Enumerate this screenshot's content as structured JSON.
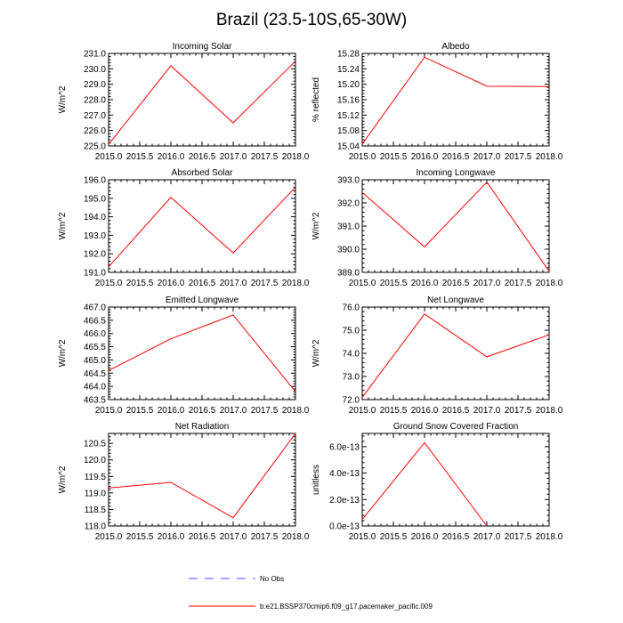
{
  "figure_title": "Brazil (23.5-10S,65-30W)",
  "legend": {
    "obs_label": "No Obs",
    "obs_color": "#4b4bff",
    "model_label": "b.e21.BSSP370cmip6.f09_g17.pacemaker_pacific.009",
    "model_color": "#ff0000"
  },
  "chart_data": [
    {
      "type": "line",
      "title": "Incoming Solar",
      "xlabel": "",
      "ylabel": "W/m^2",
      "x": [
        2015,
        2016,
        2017,
        2018
      ],
      "series": [
        {
          "name": "b.e21.BSSP370cmip6.f09_g17.pacemaker_pacific.009",
          "values": [
            225.1,
            230.2,
            226.5,
            230.5
          ]
        }
      ],
      "xlim": [
        2015,
        2018
      ],
      "ylim": [
        225.0,
        231.0
      ],
      "xticks": [
        "2015.0",
        "2015.5",
        "2016.0",
        "2016.5",
        "2017.0",
        "2017.5",
        "2018.0"
      ],
      "yticks": [
        "225.0",
        "226.0",
        "227.0",
        "228.0",
        "229.0",
        "230.0",
        "231.0"
      ],
      "grid": false
    },
    {
      "type": "line",
      "title": "Albedo",
      "xlabel": "",
      "ylabel": "% reflected",
      "x": [
        2015,
        2016,
        2017,
        2018
      ],
      "series": [
        {
          "name": "b.e21.BSSP370cmip6.f09_g17.pacemaker_pacific.009",
          "values": [
            15.045,
            15.27,
            15.195,
            15.194
          ]
        }
      ],
      "xlim": [
        2015,
        2018
      ],
      "ylim": [
        15.04,
        15.28
      ],
      "xticks": [
        "2015.0",
        "2015.5",
        "2016.0",
        "2016.5",
        "2017.0",
        "2017.5",
        "2018.0"
      ],
      "yticks": [
        "15.04",
        "15.08",
        "15.12",
        "15.16",
        "15.20",
        "15.24",
        "15.28"
      ],
      "grid": false
    },
    {
      "type": "line",
      "title": "Absorbed Solar",
      "xlabel": "",
      "ylabel": "W/m^2",
      "x": [
        2015,
        2016,
        2017,
        2018
      ],
      "series": [
        {
          "name": "b.e21.BSSP370cmip6.f09_g17.pacemaker_pacific.009",
          "values": [
            191.3,
            195.05,
            192.05,
            195.6
          ]
        }
      ],
      "xlim": [
        2015,
        2018
      ],
      "ylim": [
        191.0,
        196.0
      ],
      "xticks": [
        "2015.0",
        "2015.5",
        "2016.0",
        "2016.5",
        "2017.0",
        "2017.5",
        "2018.0"
      ],
      "yticks": [
        "191.0",
        "192.0",
        "193.0",
        "194.0",
        "195.0",
        "196.0"
      ],
      "grid": false
    },
    {
      "type": "line",
      "title": "Incoming Longwave",
      "xlabel": "",
      "ylabel": "W/m^2",
      "x": [
        2015,
        2016,
        2017,
        2018
      ],
      "series": [
        {
          "name": "b.e21.BSSP370cmip6.f09_g17.pacemaker_pacific.009",
          "values": [
            392.45,
            390.1,
            392.9,
            389.05
          ]
        }
      ],
      "xlim": [
        2015,
        2018
      ],
      "ylim": [
        389.0,
        393.0
      ],
      "xticks": [
        "2015.0",
        "2015.5",
        "2016.0",
        "2016.5",
        "2017.0",
        "2017.5",
        "2018.0"
      ],
      "yticks": [
        "389.0",
        "390.0",
        "391.0",
        "392.0",
        "393.0"
      ],
      "grid": false
    },
    {
      "type": "line",
      "title": "Emitted Longwave",
      "xlabel": "",
      "ylabel": "W/m^2",
      "x": [
        2015,
        2016,
        2017,
        2018
      ],
      "series": [
        {
          "name": "b.e21.BSSP370cmip6.f09_g17.pacemaker_pacific.009",
          "values": [
            464.6,
            465.8,
            466.7,
            463.8
          ]
        }
      ],
      "xlim": [
        2015,
        2018
      ],
      "ylim": [
        463.5,
        467.0
      ],
      "xticks": [
        "2015.0",
        "2015.5",
        "2016.0",
        "2016.5",
        "2017.0",
        "2017.5",
        "2018.0"
      ],
      "yticks": [
        "463.5",
        "464.0",
        "464.5",
        "465.0",
        "465.5",
        "466.0",
        "466.5",
        "467.0"
      ],
      "grid": false
    },
    {
      "type": "line",
      "title": "Net Longwave",
      "xlabel": "",
      "ylabel": "W/m^2",
      "x": [
        2015,
        2016,
        2017,
        2018
      ],
      "series": [
        {
          "name": "b.e21.BSSP370cmip6.f09_g17.pacemaker_pacific.009",
          "values": [
            72.1,
            75.7,
            73.85,
            74.8
          ]
        }
      ],
      "xlim": [
        2015,
        2018
      ],
      "ylim": [
        72.0,
        76.0
      ],
      "xticks": [
        "2015.0",
        "2015.5",
        "2016.0",
        "2016.5",
        "2017.0",
        "2017.5",
        "2018.0"
      ],
      "yticks": [
        "72.0",
        "73.0",
        "74.0",
        "75.0",
        "76.0"
      ],
      "grid": false
    },
    {
      "type": "line",
      "title": "Net Radiation",
      "xlabel": "",
      "ylabel": "W/m^2",
      "x": [
        2015,
        2016,
        2017,
        2018
      ],
      "series": [
        {
          "name": "b.e21.BSSP370cmip6.f09_g17.pacemaker_pacific.009",
          "values": [
            119.15,
            119.32,
            118.25,
            120.8
          ]
        }
      ],
      "xlim": [
        2015,
        2018
      ],
      "ylim": [
        118.0,
        120.8
      ],
      "xticks": [
        "2015.0",
        "2015.5",
        "2016.0",
        "2016.5",
        "2017.0",
        "2017.5",
        "2018.0"
      ],
      "yticks": [
        "118.0",
        "118.5",
        "119.0",
        "119.5",
        "120.0",
        "120.5"
      ],
      "grid": false
    },
    {
      "type": "line",
      "title": "Ground Snow Covered Fraction",
      "xlabel": "",
      "ylabel": "unitless",
      "x": [
        2015,
        2016,
        2017
      ],
      "series": [
        {
          "name": "b.e21.BSSP370cmip6.f09_g17.pacemaker_pacific.009",
          "values": [
            5e-14,
            6.3e-13,
            0.0
          ]
        }
      ],
      "xlim": [
        2015,
        2018
      ],
      "ylim": [
        0.0,
        7e-13
      ],
      "xticks": [
        "2015.0",
        "2015.5",
        "2016.0",
        "2016.5",
        "2017.0",
        "2017.5",
        "2018.0"
      ],
      "yticks": [
        "0.0e-13",
        "2.0e-13",
        "4.0e-13",
        "6.0e-13"
      ],
      "ytick_values": [
        0.0,
        2e-13,
        4e-13,
        6e-13
      ],
      "grid": false
    }
  ]
}
